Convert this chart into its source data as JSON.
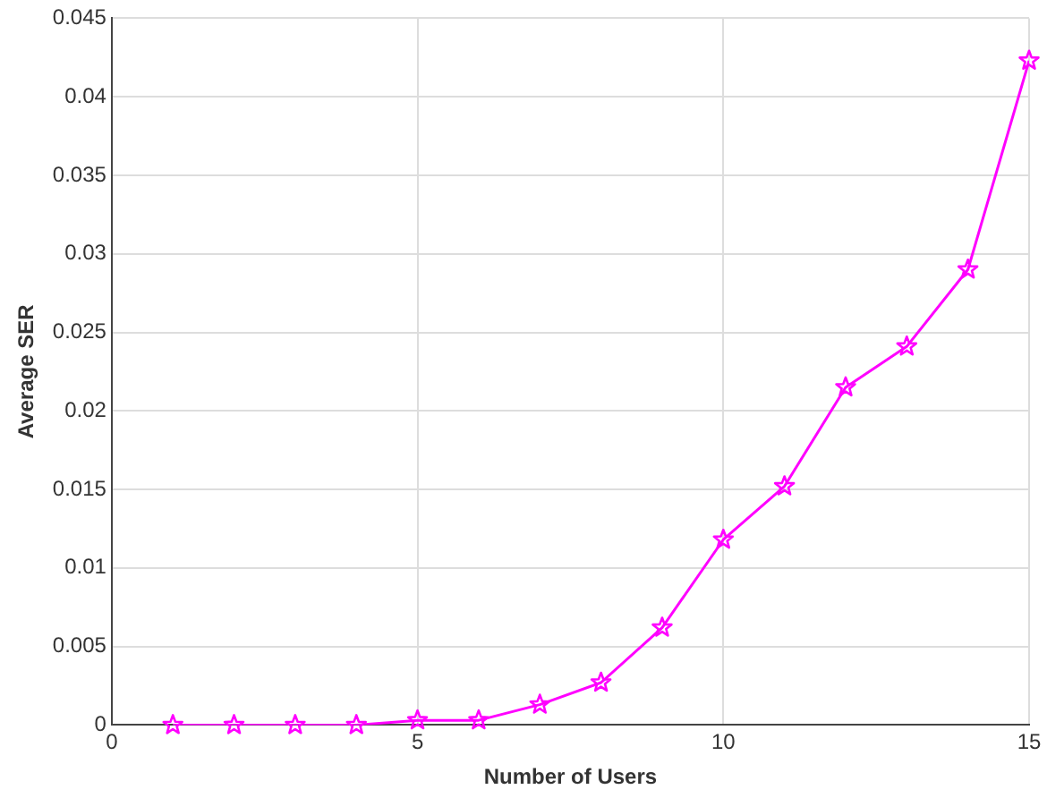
{
  "chart_data": {
    "type": "line",
    "xlabel": "Number of Users",
    "ylabel": "Average SER",
    "x": [
      1,
      2,
      3,
      4,
      5,
      6,
      7,
      8,
      9,
      10,
      11,
      12,
      13,
      14,
      15
    ],
    "series": [
      {
        "color": "#ff00ff",
        "values": [
          0,
          0,
          0,
          0,
          0.0003,
          0.0003,
          0.0013,
          0.0027,
          0.0062,
          0.0118,
          0.0152,
          0.0215,
          0.0241,
          0.029,
          0.0423
        ]
      }
    ],
    "xlim": [
      0,
      15
    ],
    "xticks": [
      0,
      5,
      10,
      15
    ],
    "ylim": [
      0,
      0.045
    ],
    "yticks": [
      0,
      0.005,
      0.01,
      0.015,
      0.02,
      0.025,
      0.03,
      0.035,
      0.04,
      0.045
    ],
    "grid": true,
    "marker": "star",
    "line_style": "solid",
    "legend": false
  }
}
